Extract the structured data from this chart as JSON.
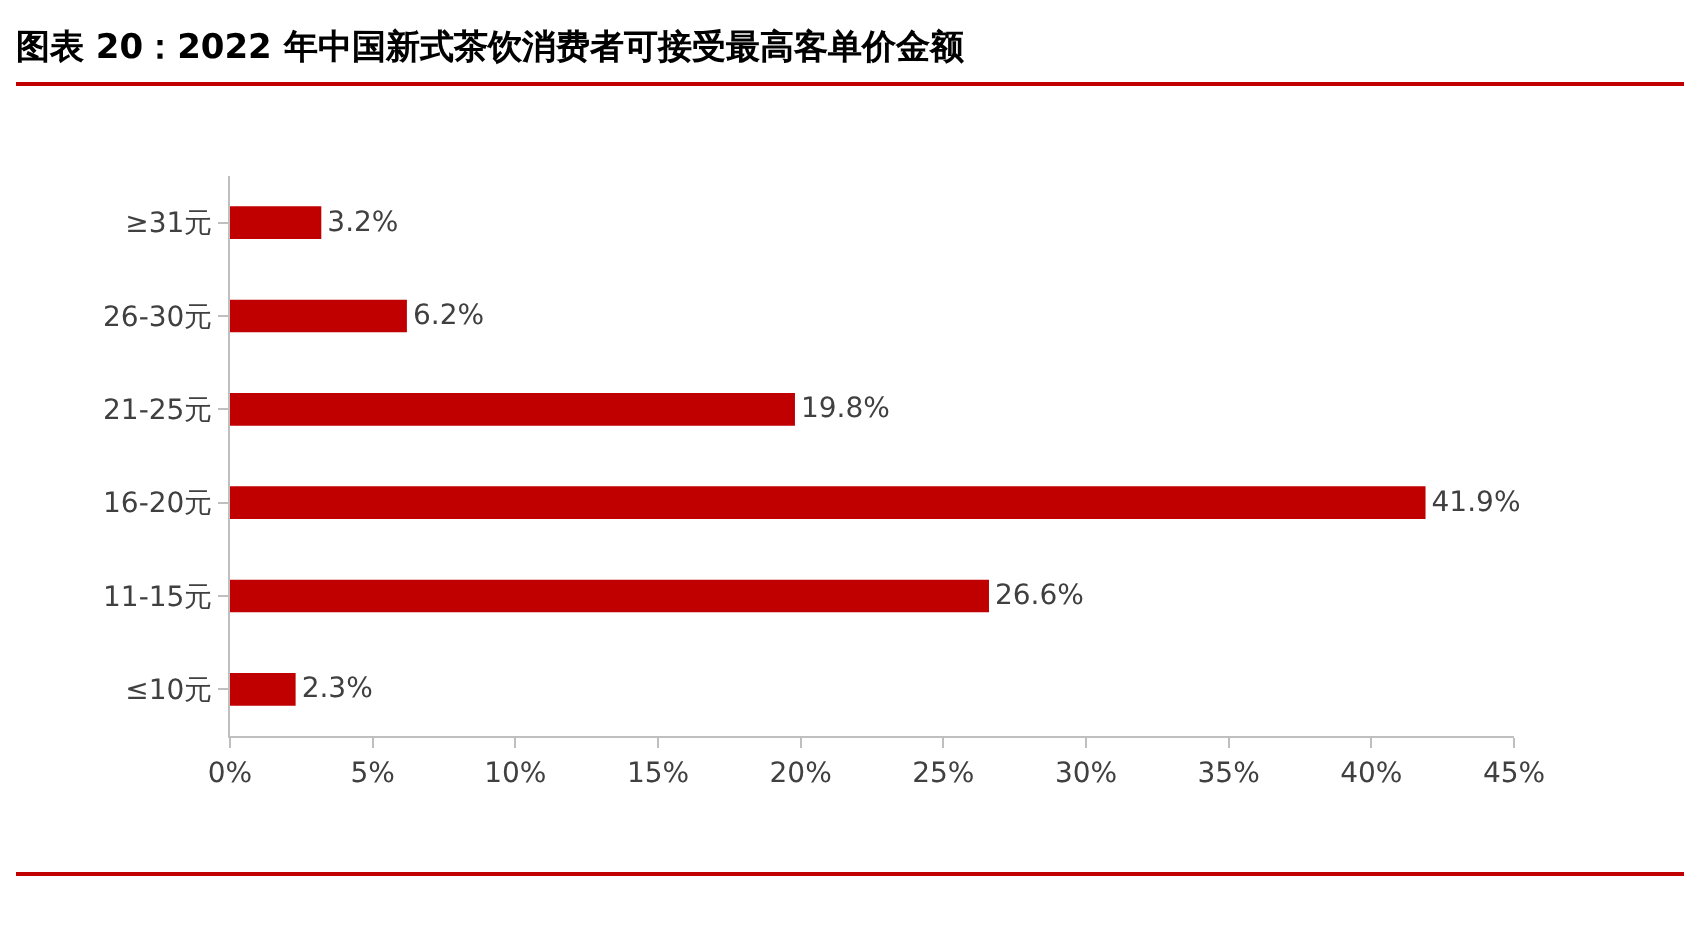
{
  "chart_data": {
    "type": "bar",
    "orientation": "horizontal",
    "title": "图表 20：2022 年中国新式茶饮消费者可接受最高客单价金额",
    "categories": [
      "≥31元",
      "26-30元",
      "21-25元",
      "16-20元",
      "11-15元",
      "≤10元"
    ],
    "values": [
      3.2,
      6.2,
      19.8,
      41.9,
      26.6,
      2.3
    ],
    "value_labels": [
      "3.2%",
      "6.2%",
      "19.8%",
      "41.9%",
      "26.6%",
      "2.3%"
    ],
    "color": "#c00000",
    "xlim": [
      0,
      45
    ],
    "xticks": [
      {
        "value": 0,
        "label": "0%"
      },
      {
        "value": 5,
        "label": "5%"
      },
      {
        "value": 10,
        "label": "10%"
      },
      {
        "value": 15,
        "label": "15%"
      },
      {
        "value": 20,
        "label": "20%"
      },
      {
        "value": 25,
        "label": "25%"
      },
      {
        "value": 30,
        "label": "30%"
      },
      {
        "value": 35,
        "label": "35%"
      },
      {
        "value": 40,
        "label": "40%"
      },
      {
        "value": 45,
        "label": "45%"
      }
    ],
    "grid": false,
    "legend": false
  }
}
